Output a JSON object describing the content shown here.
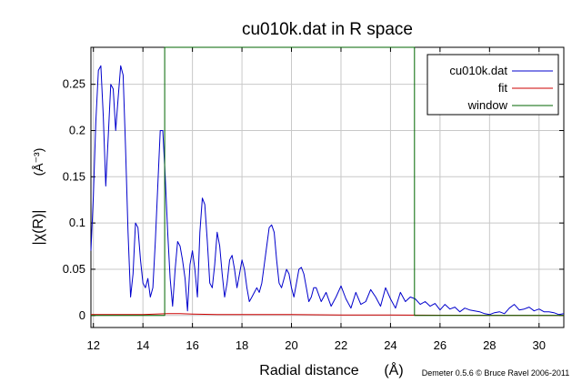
{
  "chart_data": {
    "type": "line",
    "title": "cu010k.dat in R space",
    "xlabel": "Radial distance",
    "xlabel_unit": "(Å)",
    "ylabel": "|χ(R)|",
    "ylabel_unit": "(Å⁻³)",
    "credit": "Demeter 0.5.6 © Bruce Ravel 2006-2011",
    "xlim": [
      11.9,
      31.0
    ],
    "ylim": [
      -0.013,
      0.29
    ],
    "grid": true,
    "legend_position": "top-right",
    "x_ticks": [
      12,
      14,
      16,
      18,
      20,
      22,
      24,
      26,
      28,
      30
    ],
    "y_ticks": [
      0,
      0.05,
      0.1,
      0.15,
      0.2,
      0.25
    ],
    "y_tick_labels": [
      "0",
      "0.05",
      "0.1",
      "0.15",
      "0.2",
      "0.25"
    ],
    "series": [
      {
        "name": "cu010k.dat",
        "color": "#0000cc",
        "x": [
          11.9,
          12.0,
          12.1,
          12.2,
          12.3,
          12.4,
          12.5,
          12.6,
          12.7,
          12.8,
          12.9,
          13.0,
          13.1,
          13.2,
          13.3,
          13.4,
          13.5,
          13.6,
          13.7,
          13.8,
          13.9,
          14.0,
          14.1,
          14.2,
          14.3,
          14.4,
          14.5,
          14.6,
          14.7,
          14.8,
          14.9,
          15.0,
          15.1,
          15.2,
          15.3,
          15.4,
          15.5,
          15.6,
          15.7,
          15.8,
          15.9,
          16.0,
          16.1,
          16.2,
          16.3,
          16.4,
          16.5,
          16.6,
          16.7,
          16.8,
          16.9,
          17.0,
          17.1,
          17.2,
          17.3,
          17.4,
          17.5,
          17.6,
          17.7,
          17.8,
          17.9,
          18.0,
          18.1,
          18.2,
          18.3,
          18.4,
          18.5,
          18.6,
          18.7,
          18.8,
          18.9,
          19.0,
          19.1,
          19.2,
          19.3,
          19.4,
          19.5,
          19.6,
          19.7,
          19.8,
          19.9,
          20.0,
          20.1,
          20.2,
          20.3,
          20.4,
          20.5,
          20.6,
          20.7,
          20.8,
          20.9,
          21.0,
          21.2,
          21.4,
          21.6,
          21.8,
          22.0,
          22.2,
          22.4,
          22.6,
          22.8,
          23.0,
          23.2,
          23.4,
          23.6,
          23.8,
          24.0,
          24.2,
          24.4,
          24.6,
          24.8,
          25.0,
          25.2,
          25.4,
          25.6,
          25.8,
          26.0,
          26.2,
          26.4,
          26.6,
          26.8,
          27.0,
          27.2,
          27.4,
          27.6,
          27.8,
          28.0,
          28.2,
          28.4,
          28.6,
          28.8,
          29.0,
          29.2,
          29.4,
          29.6,
          29.8,
          30.0,
          30.2,
          30.4,
          30.6,
          30.8,
          31.0
        ],
        "y": [
          0.07,
          0.13,
          0.21,
          0.265,
          0.27,
          0.215,
          0.14,
          0.195,
          0.25,
          0.245,
          0.2,
          0.235,
          0.27,
          0.26,
          0.18,
          0.09,
          0.02,
          0.045,
          0.1,
          0.095,
          0.06,
          0.035,
          0.03,
          0.04,
          0.02,
          0.03,
          0.08,
          0.14,
          0.2,
          0.2,
          0.15,
          0.09,
          0.04,
          0.01,
          0.05,
          0.08,
          0.075,
          0.06,
          0.04,
          0.005,
          0.055,
          0.07,
          0.05,
          0.02,
          0.09,
          0.127,
          0.12,
          0.08,
          0.035,
          0.03,
          0.055,
          0.09,
          0.075,
          0.045,
          0.02,
          0.035,
          0.06,
          0.065,
          0.05,
          0.03,
          0.045,
          0.06,
          0.05,
          0.03,
          0.015,
          0.02,
          0.025,
          0.03,
          0.025,
          0.035,
          0.055,
          0.075,
          0.095,
          0.098,
          0.09,
          0.06,
          0.035,
          0.03,
          0.04,
          0.05,
          0.045,
          0.03,
          0.02,
          0.035,
          0.05,
          0.052,
          0.045,
          0.03,
          0.015,
          0.02,
          0.03,
          0.03,
          0.015,
          0.025,
          0.01,
          0.02,
          0.032,
          0.018,
          0.008,
          0.025,
          0.012,
          0.015,
          0.028,
          0.02,
          0.01,
          0.03,
          0.018,
          0.008,
          0.025,
          0.015,
          0.02,
          0.018,
          0.012,
          0.015,
          0.01,
          0.013,
          0.006,
          0.012,
          0.007,
          0.009,
          0.004,
          0.008,
          0.006,
          0.005,
          0.004,
          0.002,
          0.001,
          0.003,
          0.004,
          0.002,
          0.008,
          0.012,
          0.006,
          0.007,
          0.009,
          0.005,
          0.007,
          0.004,
          0.004,
          0.003,
          0.001,
          0.002
        ]
      },
      {
        "name": "fit",
        "color": "#cc0000",
        "x": [
          11.9,
          13.0,
          14.0,
          15.0,
          15.5,
          16.0,
          17.0,
          18.0,
          20.0,
          22.0,
          24.0,
          26.0,
          28.0,
          31.0
        ],
        "y": [
          0.001,
          0.001,
          0.001,
          0.002,
          0.002,
          0.0015,
          0.001,
          0.001,
          0.001,
          0.0005,
          0.0005,
          0.0003,
          0.0002,
          0.0001
        ]
      },
      {
        "name": "window",
        "color": "#006600",
        "x": [
          11.9,
          14.88,
          14.88,
          14.9,
          24.95,
          24.97,
          24.97,
          31.0
        ],
        "y": [
          0,
          0,
          0.29,
          0.29,
          0.29,
          0.29,
          0,
          0
        ]
      }
    ]
  }
}
